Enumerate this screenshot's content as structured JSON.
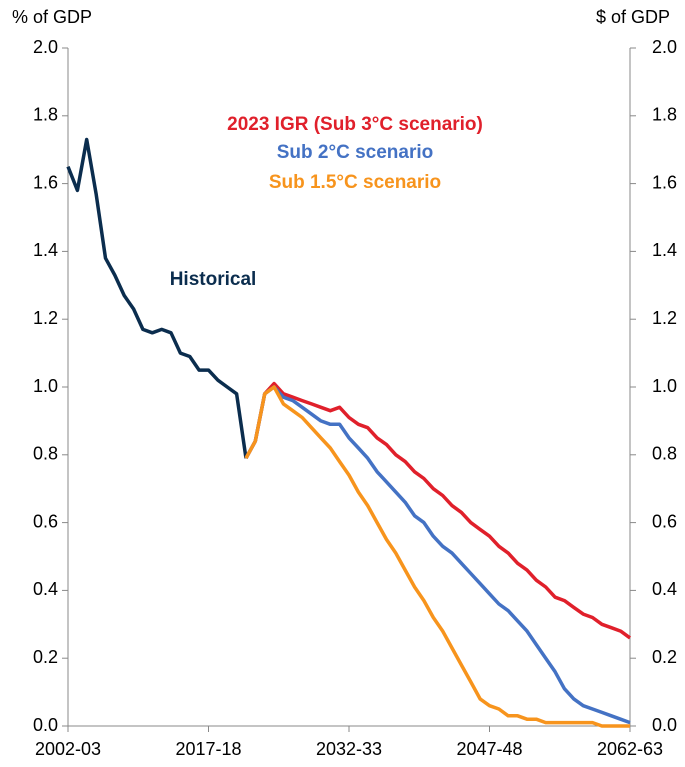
{
  "chart_data": {
    "type": "line",
    "y_label": "% of GDP",
    "y2_label": "$ of GDP",
    "xlim": [
      2002,
      2062
    ],
    "xticks": [
      {
        "value": 2002,
        "label": "2002-03"
      },
      {
        "value": 2017,
        "label": "2017-18"
      },
      {
        "value": 2032,
        "label": "2032-33"
      },
      {
        "value": 2047,
        "label": "2047-48"
      },
      {
        "value": 2062,
        "label": "2062-63"
      }
    ],
    "ylim": [
      0,
      2
    ],
    "yticks": [
      {
        "value": 0,
        "label": "0.0"
      },
      {
        "value": 0.2,
        "label": "0.2"
      },
      {
        "value": 0.4,
        "label": "0.4"
      },
      {
        "value": 0.6,
        "label": "0.6"
      },
      {
        "value": 0.8,
        "label": "0.8"
      },
      {
        "value": 1,
        "label": "1.0"
      },
      {
        "value": 1.2,
        "label": "1.2"
      },
      {
        "value": 1.4,
        "label": "1.4"
      },
      {
        "value": 1.6,
        "label": "1.6"
      },
      {
        "value": 1.8,
        "label": "1.8"
      },
      {
        "value": 2,
        "label": "2.0"
      }
    ],
    "y2lim": [
      0,
      2
    ],
    "y2ticks": [
      {
        "value": 0,
        "label": "0.0"
      },
      {
        "value": 0.2,
        "label": "0.2"
      },
      {
        "value": 0.4,
        "label": "0.4"
      },
      {
        "value": 0.6,
        "label": "0.6"
      },
      {
        "value": 0.8,
        "label": "0.8"
      },
      {
        "value": 1,
        "label": "1.0"
      },
      {
        "value": 1.2,
        "label": "1.2"
      },
      {
        "value": 1.4,
        "label": "1.4"
      },
      {
        "value": 1.6,
        "label": "1.6"
      },
      {
        "value": 1.8,
        "label": "1.8"
      },
      {
        "value": 2,
        "label": "2.0"
      }
    ],
    "series": [
      {
        "name": "Historical",
        "color": "#0b2d4e",
        "x": [
          2002,
          2003,
          2004,
          2005,
          2006,
          2007,
          2008,
          2009,
          2010,
          2011,
          2012,
          2013,
          2014,
          2015,
          2016,
          2017,
          2018,
          2019,
          2020,
          2021
        ],
        "values": [
          1.65,
          1.58,
          1.73,
          1.57,
          1.38,
          1.33,
          1.27,
          1.23,
          1.17,
          1.16,
          1.17,
          1.16,
          1.1,
          1.09,
          1.05,
          1.05,
          1.02,
          1.0,
          0.98,
          0.79
        ]
      },
      {
        "name": "2023 IGR (Sub 3°C scenario)",
        "color": "#e0202b",
        "x": [
          2021,
          2022,
          2023,
          2024,
          2025,
          2026,
          2027,
          2028,
          2029,
          2030,
          2031,
          2032,
          2033,
          2034,
          2035,
          2036,
          2037,
          2038,
          2039,
          2040,
          2041,
          2042,
          2043,
          2044,
          2045,
          2046,
          2047,
          2048,
          2049,
          2050,
          2051,
          2052,
          2053,
          2054,
          2055,
          2056,
          2057,
          2058,
          2059,
          2060,
          2061,
          2062
        ],
        "values": [
          0.79,
          0.84,
          0.98,
          1.01,
          0.98,
          0.97,
          0.96,
          0.95,
          0.94,
          0.93,
          0.94,
          0.91,
          0.89,
          0.88,
          0.85,
          0.83,
          0.8,
          0.78,
          0.75,
          0.73,
          0.7,
          0.68,
          0.65,
          0.63,
          0.6,
          0.58,
          0.56,
          0.53,
          0.51,
          0.48,
          0.46,
          0.43,
          0.41,
          0.38,
          0.37,
          0.35,
          0.33,
          0.32,
          0.3,
          0.29,
          0.28,
          0.26
        ]
      },
      {
        "name": "Sub 2°C scenario",
        "color": "#4472c4",
        "x": [
          2021,
          2022,
          2023,
          2024,
          2025,
          2026,
          2027,
          2028,
          2029,
          2030,
          2031,
          2032,
          2033,
          2034,
          2035,
          2036,
          2037,
          2038,
          2039,
          2040,
          2041,
          2042,
          2043,
          2044,
          2045,
          2046,
          2047,
          2048,
          2049,
          2050,
          2051,
          2052,
          2053,
          2054,
          2055,
          2056,
          2057,
          2058,
          2059,
          2060,
          2061,
          2062
        ],
        "values": [
          0.79,
          0.84,
          0.98,
          1.0,
          0.97,
          0.96,
          0.94,
          0.92,
          0.9,
          0.89,
          0.89,
          0.85,
          0.82,
          0.79,
          0.75,
          0.72,
          0.69,
          0.66,
          0.62,
          0.6,
          0.56,
          0.53,
          0.51,
          0.48,
          0.45,
          0.42,
          0.39,
          0.36,
          0.34,
          0.31,
          0.28,
          0.24,
          0.2,
          0.16,
          0.11,
          0.08,
          0.06,
          0.05,
          0.04,
          0.03,
          0.02,
          0.01
        ]
      },
      {
        "name": "Sub 1.5°C scenario",
        "color": "#f7941d",
        "x": [
          2021,
          2022,
          2023,
          2024,
          2025,
          2026,
          2027,
          2028,
          2029,
          2030,
          2031,
          2032,
          2033,
          2034,
          2035,
          2036,
          2037,
          2038,
          2039,
          2040,
          2041,
          2042,
          2043,
          2044,
          2045,
          2046,
          2047,
          2048,
          2049,
          2050,
          2051,
          2052,
          2053,
          2054,
          2055,
          2056,
          2057,
          2058,
          2059,
          2060,
          2061,
          2062
        ],
        "values": [
          0.79,
          0.84,
          0.98,
          1.0,
          0.95,
          0.93,
          0.91,
          0.88,
          0.85,
          0.82,
          0.78,
          0.74,
          0.69,
          0.65,
          0.6,
          0.55,
          0.51,
          0.46,
          0.41,
          0.37,
          0.32,
          0.28,
          0.23,
          0.18,
          0.13,
          0.08,
          0.06,
          0.05,
          0.03,
          0.03,
          0.02,
          0.02,
          0.01,
          0.01,
          0.01,
          0.01,
          0.01,
          0.01,
          0.0,
          0.0,
          0.0,
          0.0
        ]
      }
    ]
  }
}
